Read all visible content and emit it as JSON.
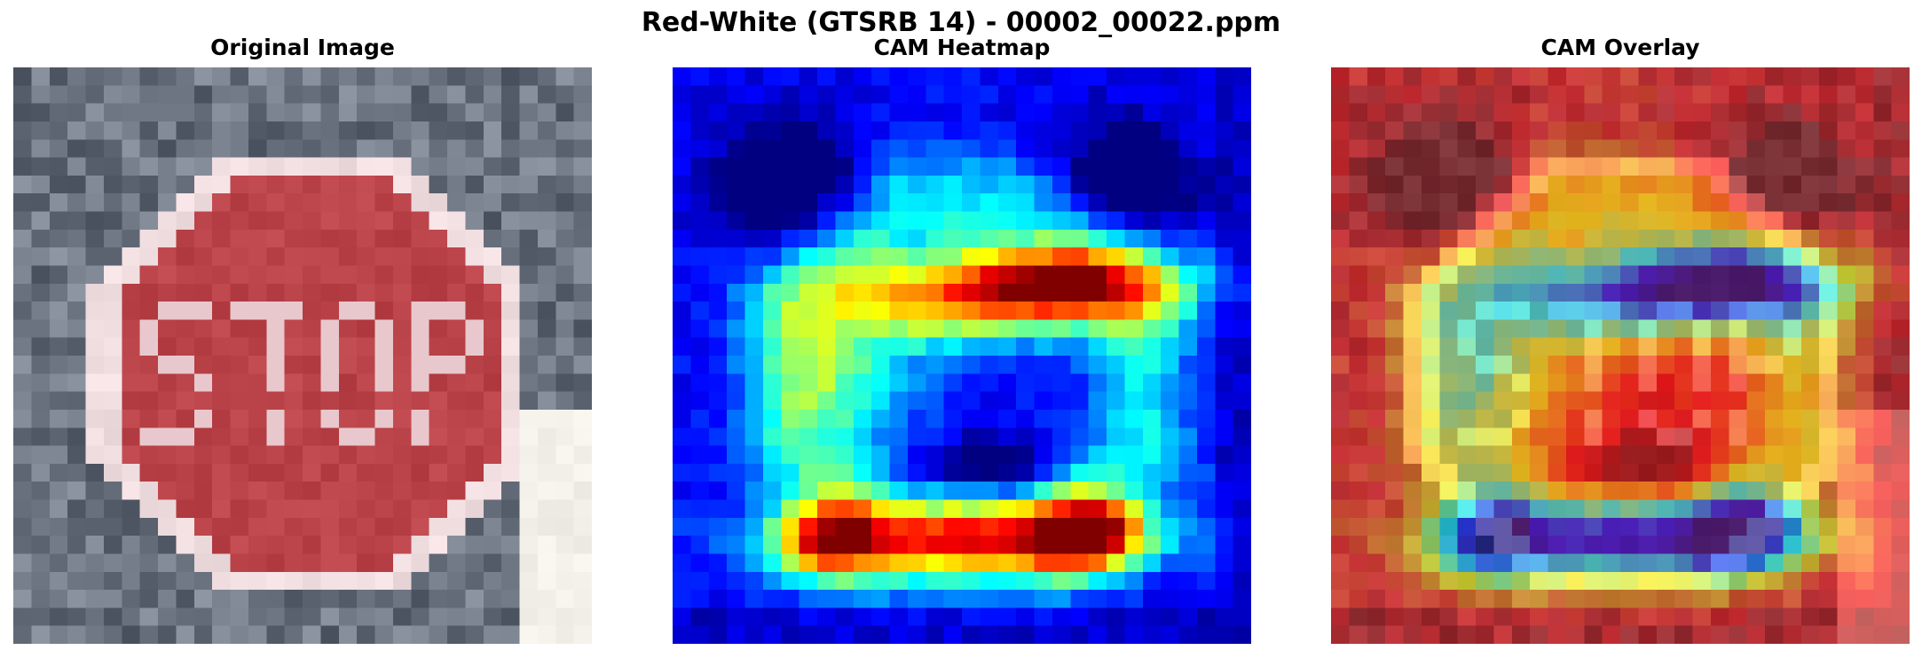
{
  "figure": {
    "suptitle": "Red-White (GTSRB 14) - 00002_00022.ppm",
    "panels": [
      {
        "title": "Original Image",
        "kind": "original"
      },
      {
        "title": "CAM Heatmap",
        "kind": "heatmap",
        "colormap": "jet"
      },
      {
        "title": "CAM Overlay",
        "kind": "overlay"
      }
    ],
    "sign_text": "STOP",
    "colors": {
      "sign_red": "#b94348",
      "sign_border": "#f0dde0",
      "background_gray": "#6b7378",
      "heat_low": "#00007f",
      "heat_high": "#7f0000"
    }
  }
}
